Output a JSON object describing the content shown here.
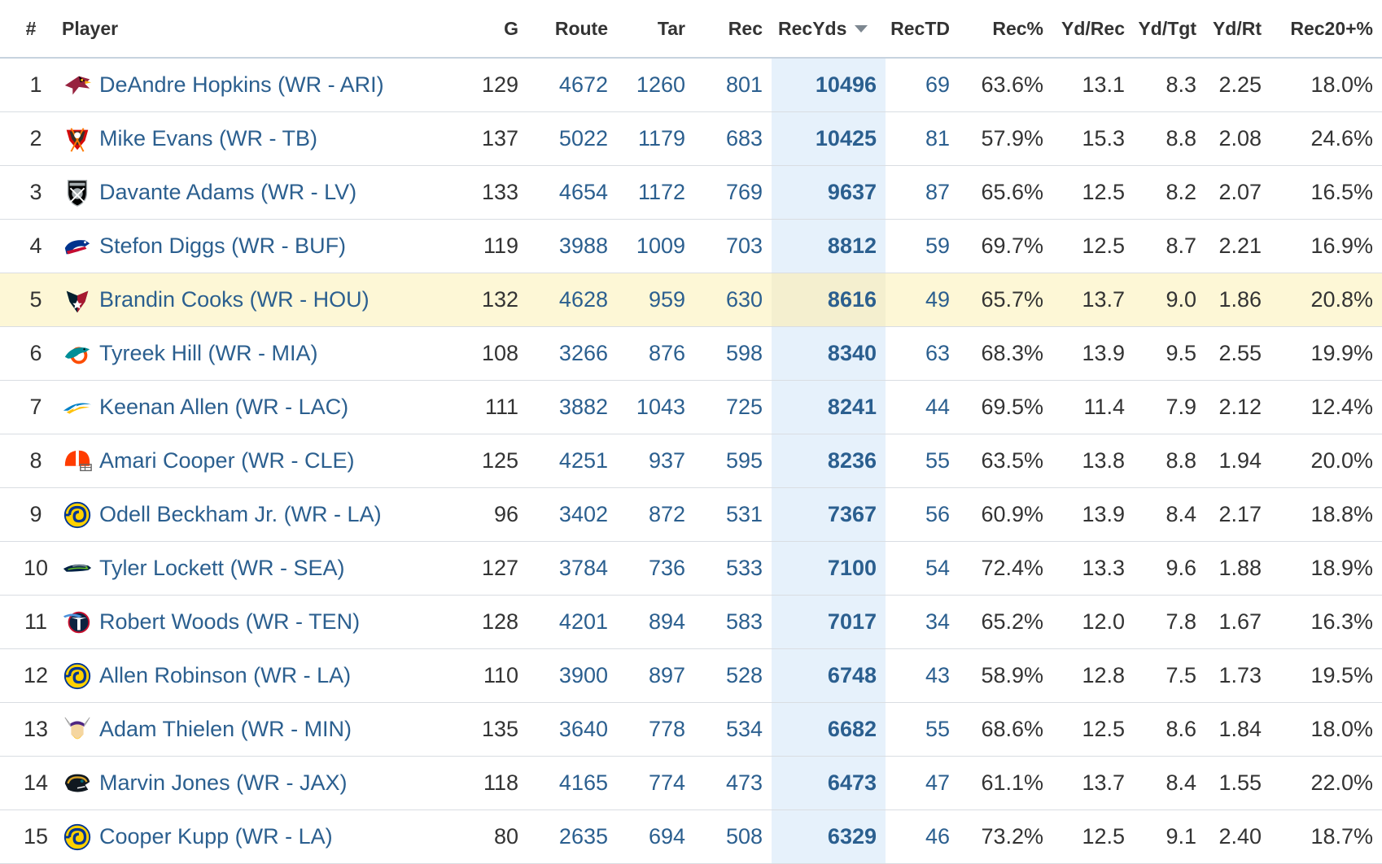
{
  "table": {
    "headers": {
      "rank": "#",
      "player": "Player",
      "g": "G",
      "route": "Route",
      "tar": "Tar",
      "rec": "Rec",
      "recyds": "RecYds",
      "rectd": "RecTD",
      "recpct": "Rec%",
      "ydrec": "Yd/Rec",
      "ydtgt": "Yd/Tgt",
      "ydrt": "Yd/Rt",
      "rec20": "Rec20+%"
    },
    "sorted_column": "RecYds",
    "sort_direction": "descending",
    "highlighted_row": 5,
    "rows": [
      {
        "rank": "1",
        "player": "DeAndre Hopkins (WR - ARI)",
        "logo": "cardinals-logo-icon",
        "g": "129",
        "route": "4672",
        "tar": "1260",
        "rec": "801",
        "recyds": "10496",
        "rectd": "69",
        "recpct": "63.6%",
        "ydrec": "13.1",
        "ydtgt": "8.3",
        "ydrt": "2.25",
        "rec20": "18.0%"
      },
      {
        "rank": "2",
        "player": "Mike Evans (WR - TB)",
        "logo": "buccaneers-logo-icon",
        "g": "137",
        "route": "5022",
        "tar": "1179",
        "rec": "683",
        "recyds": "10425",
        "rectd": "81",
        "recpct": "57.9%",
        "ydrec": "15.3",
        "ydtgt": "8.8",
        "ydrt": "2.08",
        "rec20": "24.6%"
      },
      {
        "rank": "3",
        "player": "Davante Adams (WR - LV)",
        "logo": "raiders-logo-icon",
        "g": "133",
        "route": "4654",
        "tar": "1172",
        "rec": "769",
        "recyds": "9637",
        "rectd": "87",
        "recpct": "65.6%",
        "ydrec": "12.5",
        "ydtgt": "8.2",
        "ydrt": "2.07",
        "rec20": "16.5%"
      },
      {
        "rank": "4",
        "player": "Stefon Diggs (WR - BUF)",
        "logo": "bills-logo-icon",
        "g": "119",
        "route": "3988",
        "tar": "1009",
        "rec": "703",
        "recyds": "8812",
        "rectd": "59",
        "recpct": "69.7%",
        "ydrec": "12.5",
        "ydtgt": "8.7",
        "ydrt": "2.21",
        "rec20": "16.9%"
      },
      {
        "rank": "5",
        "player": "Brandin Cooks (WR - HOU)",
        "logo": "texans-logo-icon",
        "g": "132",
        "route": "4628",
        "tar": "959",
        "rec": "630",
        "recyds": "8616",
        "rectd": "49",
        "recpct": "65.7%",
        "ydrec": "13.7",
        "ydtgt": "9.0",
        "ydrt": "1.86",
        "rec20": "20.8%"
      },
      {
        "rank": "6",
        "player": "Tyreek Hill (WR - MIA)",
        "logo": "dolphins-logo-icon",
        "g": "108",
        "route": "3266",
        "tar": "876",
        "rec": "598",
        "recyds": "8340",
        "rectd": "63",
        "recpct": "68.3%",
        "ydrec": "13.9",
        "ydtgt": "9.5",
        "ydrt": "2.55",
        "rec20": "19.9%"
      },
      {
        "rank": "7",
        "player": "Keenan Allen (WR - LAC)",
        "logo": "chargers-logo-icon",
        "g": "111",
        "route": "3882",
        "tar": "1043",
        "rec": "725",
        "recyds": "8241",
        "rectd": "44",
        "recpct": "69.5%",
        "ydrec": "11.4",
        "ydtgt": "7.9",
        "ydrt": "2.12",
        "rec20": "12.4%"
      },
      {
        "rank": "8",
        "player": "Amari Cooper (WR - CLE)",
        "logo": "browns-logo-icon",
        "g": "125",
        "route": "4251",
        "tar": "937",
        "rec": "595",
        "recyds": "8236",
        "rectd": "55",
        "recpct": "63.5%",
        "ydrec": "13.8",
        "ydtgt": "8.8",
        "ydrt": "1.94",
        "rec20": "20.0%"
      },
      {
        "rank": "9",
        "player": "Odell Beckham Jr. (WR - LA)",
        "logo": "rams-logo-icon",
        "g": "96",
        "route": "3402",
        "tar": "872",
        "rec": "531",
        "recyds": "7367",
        "rectd": "56",
        "recpct": "60.9%",
        "ydrec": "13.9",
        "ydtgt": "8.4",
        "ydrt": "2.17",
        "rec20": "18.8%"
      },
      {
        "rank": "10",
        "player": "Tyler Lockett (WR - SEA)",
        "logo": "seahawks-logo-icon",
        "g": "127",
        "route": "3784",
        "tar": "736",
        "rec": "533",
        "recyds": "7100",
        "rectd": "54",
        "recpct": "72.4%",
        "ydrec": "13.3",
        "ydtgt": "9.6",
        "ydrt": "1.88",
        "rec20": "18.9%"
      },
      {
        "rank": "11",
        "player": "Robert Woods (WR - TEN)",
        "logo": "titans-logo-icon",
        "g": "128",
        "route": "4201",
        "tar": "894",
        "rec": "583",
        "recyds": "7017",
        "rectd": "34",
        "recpct": "65.2%",
        "ydrec": "12.0",
        "ydtgt": "7.8",
        "ydrt": "1.67",
        "rec20": "16.3%"
      },
      {
        "rank": "12",
        "player": "Allen Robinson (WR - LA)",
        "logo": "rams-logo-icon",
        "g": "110",
        "route": "3900",
        "tar": "897",
        "rec": "528",
        "recyds": "6748",
        "rectd": "43",
        "recpct": "58.9%",
        "ydrec": "12.8",
        "ydtgt": "7.5",
        "ydrt": "1.73",
        "rec20": "19.5%"
      },
      {
        "rank": "13",
        "player": "Adam Thielen (WR - MIN)",
        "logo": "vikings-logo-icon",
        "g": "135",
        "route": "3640",
        "tar": "778",
        "rec": "534",
        "recyds": "6682",
        "rectd": "55",
        "recpct": "68.6%",
        "ydrec": "12.5",
        "ydtgt": "8.6",
        "ydrt": "1.84",
        "rec20": "18.0%"
      },
      {
        "rank": "14",
        "player": "Marvin Jones (WR - JAX)",
        "logo": "jaguars-logo-icon",
        "g": "118",
        "route": "4165",
        "tar": "774",
        "rec": "473",
        "recyds": "6473",
        "rectd": "47",
        "recpct": "61.1%",
        "ydrec": "13.7",
        "ydtgt": "8.4",
        "ydrt": "1.55",
        "rec20": "22.0%"
      },
      {
        "rank": "15",
        "player": "Cooper Kupp (WR - LA)",
        "logo": "rams-logo-icon",
        "g": "80",
        "route": "2635",
        "tar": "694",
        "rec": "508",
        "recyds": "6329",
        "rectd": "46",
        "recpct": "73.2%",
        "ydrec": "12.5",
        "ydtgt": "9.1",
        "ydrt": "2.40",
        "rec20": "18.7%"
      }
    ]
  },
  "colors": {
    "link": "#2b5f8f",
    "text": "#333333",
    "sorted_column_bg": "#e6f1fb",
    "highlight_row_bg": "#fdf7d6"
  }
}
